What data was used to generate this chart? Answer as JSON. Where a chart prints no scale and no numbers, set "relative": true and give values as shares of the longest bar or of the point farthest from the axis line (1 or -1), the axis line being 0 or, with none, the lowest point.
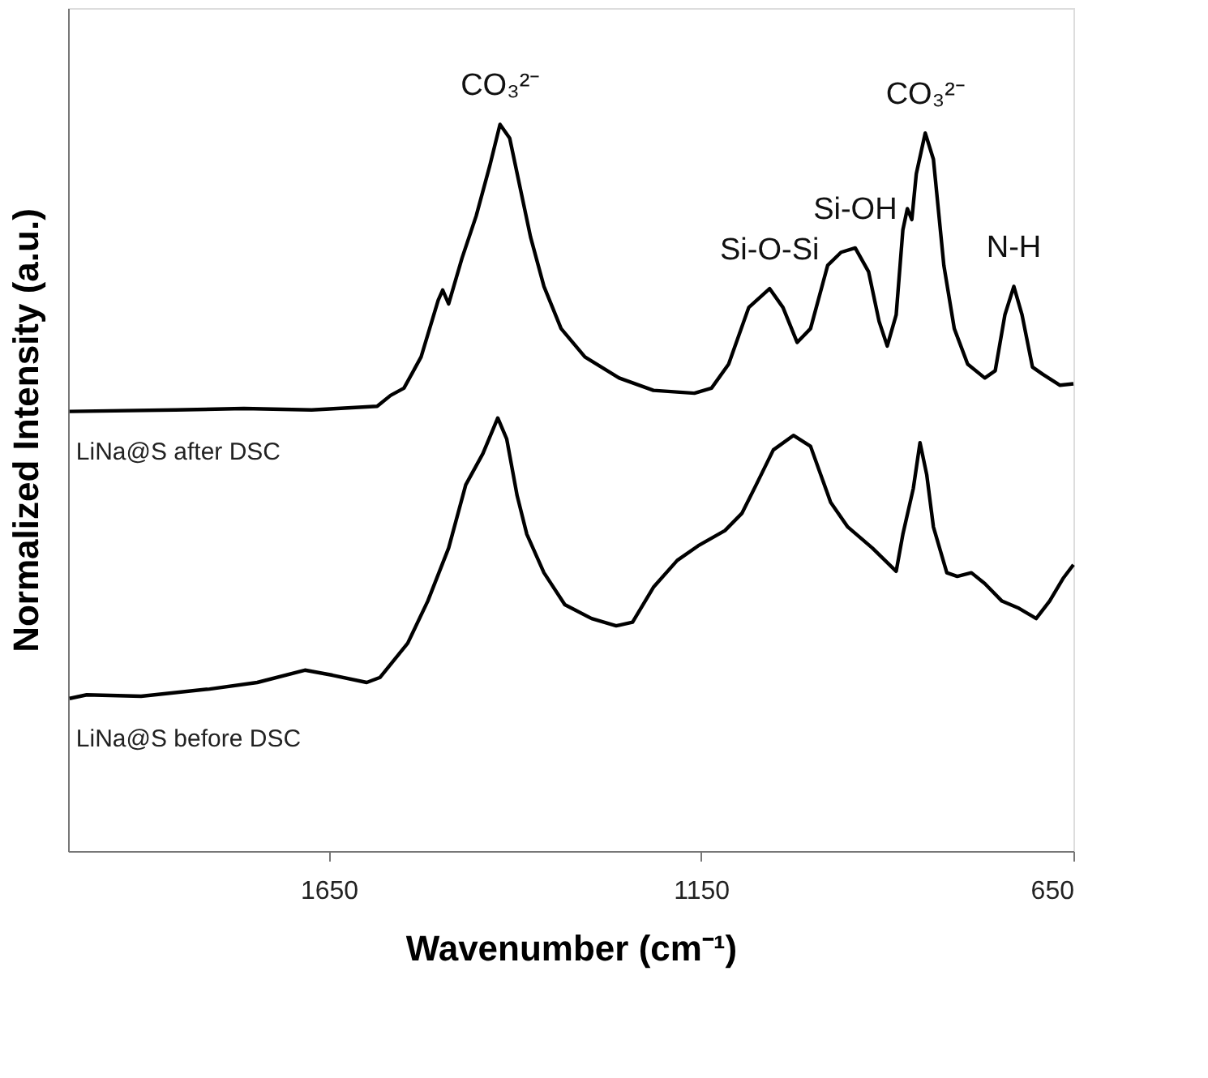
{
  "chart_data": {
    "type": "line",
    "relative": true,
    "xlabel": "Wavenumber (cm⁻¹)",
    "ylabel": "Normalized Intensity (a.u.)",
    "xlim": [
      2000,
      650
    ],
    "xticks": [
      1650,
      1150,
      650
    ],
    "grid": false,
    "marker": "none",
    "line_style": "solid",
    "series": [
      {
        "name": "LiNa@S after DSC",
        "color": "#000000",
        "x": [
          1998,
          1856,
          1764,
          1673,
          1585,
          1567,
          1549,
          1526,
          1503,
          1497,
          1489,
          1471,
          1452,
          1434,
          1420,
          1407,
          1393,
          1379,
          1361,
          1338,
          1306,
          1260,
          1214,
          1159,
          1136,
          1113,
          1086,
          1058,
          1040,
          1021,
          1003,
          980,
          962,
          943,
          925,
          911,
          900,
          888,
          879,
          873,
          867,
          861,
          849,
          838,
          824,
          810,
          792,
          769,
          755,
          742,
          730,
          719,
          705,
          691,
          668,
          650
        ],
        "values": [
          0.605,
          0.607,
          0.609,
          0.607,
          0.612,
          0.627,
          0.637,
          0.68,
          0.758,
          0.772,
          0.753,
          0.816,
          0.874,
          0.942,
          1.0,
          0.981,
          0.913,
          0.845,
          0.777,
          0.719,
          0.68,
          0.651,
          0.634,
          0.63,
          0.637,
          0.67,
          0.748,
          0.774,
          0.748,
          0.7,
          0.719,
          0.806,
          0.824,
          0.83,
          0.797,
          0.729,
          0.695,
          0.738,
          0.855,
          0.884,
          0.869,
          0.932,
          0.988,
          0.952,
          0.806,
          0.719,
          0.67,
          0.651,
          0.661,
          0.738,
          0.777,
          0.738,
          0.666,
          0.656,
          0.641,
          0.643
        ]
      },
      {
        "name": "LiNa@S before DSC",
        "color": "#000000",
        "x": [
          1998,
          1975,
          1902,
          1810,
          1746,
          1682,
          1645,
          1599,
          1581,
          1544,
          1517,
          1489,
          1466,
          1443,
          1423,
          1411,
          1397,
          1384,
          1361,
          1333,
          1297,
          1264,
          1242,
          1214,
          1182,
          1154,
          1118,
          1095,
          1076,
          1053,
          1026,
          1003,
          976,
          953,
          920,
          888,
          879,
          865,
          856,
          847,
          838,
          820,
          806,
          787,
          769,
          746,
          723,
          700,
          682,
          664,
          650
        ],
        "values": [
          0.21,
          0.215,
          0.213,
          0.223,
          0.232,
          0.249,
          0.242,
          0.232,
          0.239,
          0.286,
          0.344,
          0.417,
          0.504,
          0.547,
          0.596,
          0.567,
          0.489,
          0.436,
          0.383,
          0.339,
          0.32,
          0.31,
          0.315,
          0.363,
          0.4,
          0.42,
          0.441,
          0.465,
          0.504,
          0.552,
          0.572,
          0.557,
          0.48,
          0.446,
          0.417,
          0.385,
          0.436,
          0.499,
          0.562,
          0.518,
          0.446,
          0.383,
          0.378,
          0.383,
          0.368,
          0.344,
          0.334,
          0.32,
          0.344,
          0.375,
          0.394
        ]
      }
    ],
    "annotations": [
      {
        "text": "CO₃²⁻",
        "x": 1420,
        "y": 1.0
      },
      {
        "text": "Si-O-Si",
        "x": 1058,
        "y": 0.774
      },
      {
        "text": "Si-OH",
        "x": 943,
        "y": 0.83
      },
      {
        "text": "CO₃²⁻",
        "x": 849,
        "y": 0.988
      },
      {
        "text": "N-H",
        "x": 730,
        "y": 0.777
      }
    ]
  }
}
